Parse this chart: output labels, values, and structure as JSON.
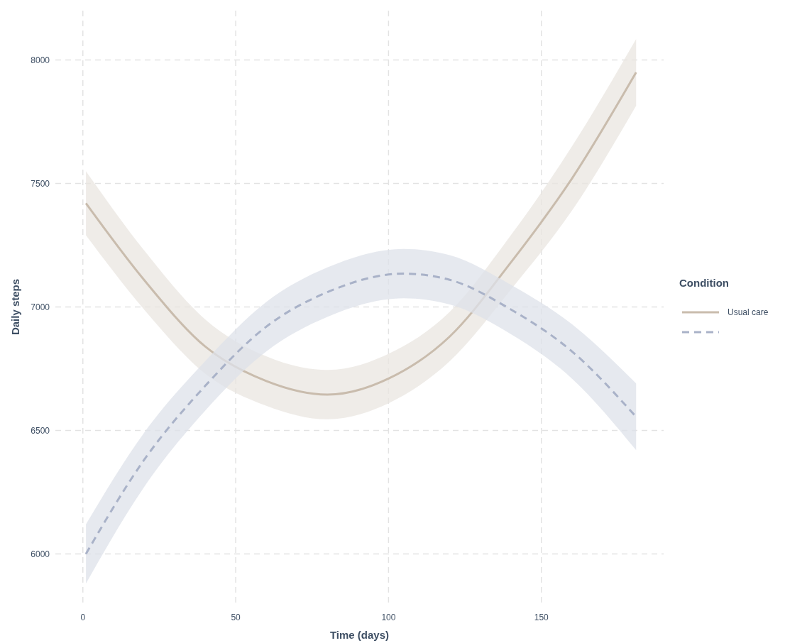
{
  "chart_data": {
    "type": "line",
    "xlabel": "Time (days)",
    "ylabel": "Daily steps",
    "legend_title": "Condition",
    "xlim": [
      -9,
      190
    ],
    "ylim": [
      5800,
      8200
    ],
    "xticks": [
      0,
      50,
      100,
      150
    ],
    "yticks": [
      6000,
      6500,
      7000,
      7500,
      8000
    ],
    "grid": true,
    "legend": "right",
    "marker": "none",
    "series": [
      {
        "name": "Usual care",
        "color": "#c9bcad",
        "line_style": "solid",
        "x": [
          1,
          20,
          40,
          60,
          80,
          100,
          120,
          140,
          160,
          181
        ],
        "values": [
          7420,
          7110,
          6840,
          6700,
          6645,
          6710,
          6880,
          7180,
          7520,
          7950
        ],
        "lower": [
          7290,
          6990,
          6730,
          6600,
          6545,
          6610,
          6780,
          7070,
          7390,
          7815
        ],
        "upper": [
          7550,
          7230,
          6950,
          6800,
          6745,
          6810,
          6980,
          7290,
          7650,
          8085
        ]
      },
      {
        "color": "#a9b2c8",
        "line_style": "dashed",
        "x": [
          1,
          20,
          40,
          60,
          80,
          105,
          120,
          140,
          160,
          181
        ],
        "values": [
          6000,
          6380,
          6680,
          6920,
          7060,
          7135,
          7110,
          6990,
          6820,
          6555
        ],
        "lower": [
          5880,
          6270,
          6580,
          6820,
          6960,
          7035,
          7010,
          6890,
          6710,
          6420
        ],
        "upper": [
          6120,
          6490,
          6780,
          7020,
          7160,
          7235,
          7210,
          7090,
          6930,
          6690
        ]
      }
    ]
  }
}
